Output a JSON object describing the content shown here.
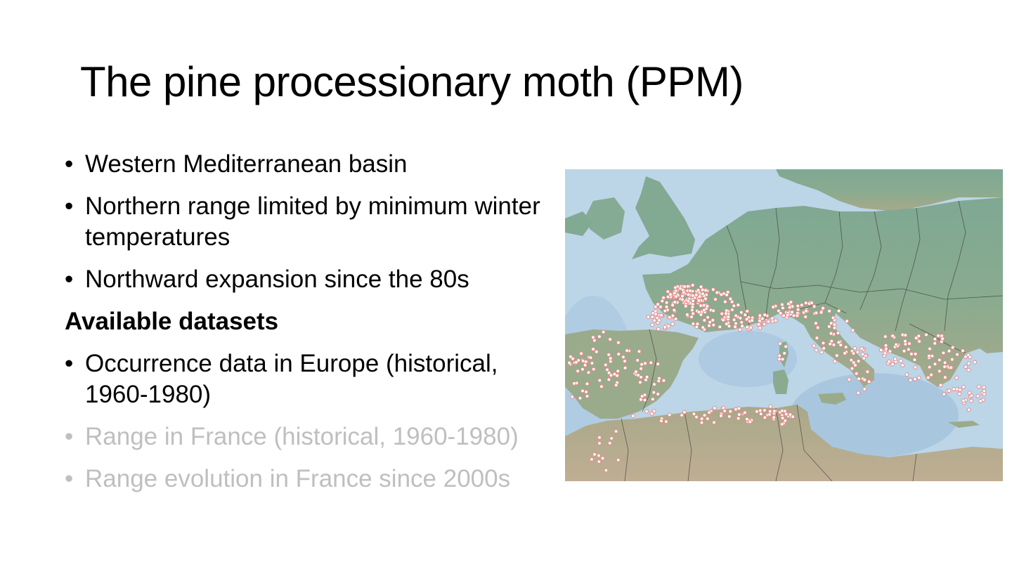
{
  "slide": {
    "title": "The pine processionary moth (PPM)",
    "items": [
      {
        "kind": "bullet",
        "text": "Western Mediterranean basin",
        "dim": false
      },
      {
        "kind": "bullet",
        "text": "Northern range limited by minimum winter temperatures",
        "dim": false
      },
      {
        "kind": "bullet",
        "text": "Northward expansion since the 80s",
        "dim": false
      },
      {
        "kind": "heading",
        "text": "Available datasets",
        "dim": false
      },
      {
        "kind": "bullet",
        "text": "Occurrence data in Europe (historical, 1960-1980)",
        "dim": false
      },
      {
        "kind": "bullet",
        "text": "Range in France (historical, 1960-1980)",
        "dim": true
      },
      {
        "kind": "bullet",
        "text": "Range evolution in France since 2000s",
        "dim": true
      }
    ],
    "bullet_glyph": "•"
  },
  "map": {
    "colors": {
      "sea": "#b9d3e6",
      "sea_shallow": "#c8dceb",
      "land_north": "#7ea792",
      "land_south": "#a9a98a",
      "desert": "#b7a98c",
      "border": "#3b3b3b",
      "occurrence_point": "#e88a8a"
    },
    "marker": "occurrence-point"
  }
}
